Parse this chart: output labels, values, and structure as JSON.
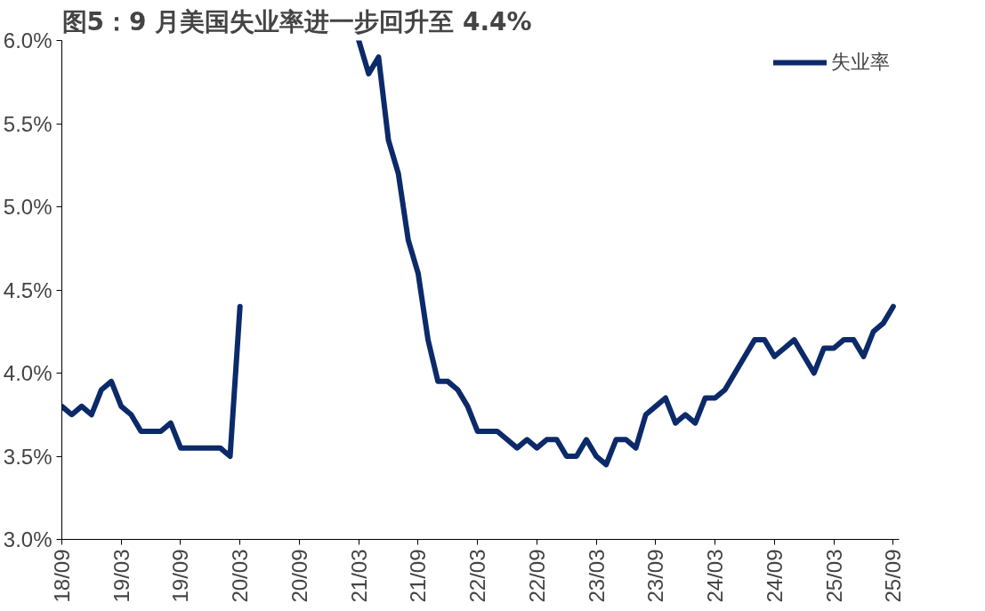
{
  "chart_data": {
    "type": "line",
    "title": "图5：9 月美国失业率进一步回升至 4.4%",
    "categories": [
      "18/09",
      null,
      null,
      null,
      null,
      null,
      "19/03",
      null,
      null,
      null,
      null,
      null,
      "19/09",
      null,
      null,
      null,
      null,
      null,
      "20/03",
      null,
      null,
      null,
      null,
      null,
      "20/09",
      null,
      null,
      null,
      null,
      null,
      "21/03",
      null,
      null,
      null,
      null,
      null,
      "21/09",
      null,
      null,
      null,
      null,
      null,
      "22/03",
      null,
      null,
      null,
      null,
      null,
      "22/09",
      null,
      null,
      null,
      null,
      null,
      "23/03",
      null,
      null,
      null,
      null,
      null,
      "23/09",
      null,
      null,
      null,
      null,
      null,
      "24/03",
      null,
      null,
      null,
      null,
      null,
      "24/09",
      null,
      null,
      null,
      null,
      null,
      "25/03",
      null,
      null,
      null,
      null,
      null,
      "25/09"
    ],
    "series": [
      {
        "name": "失业率",
        "color": "#0c2a6a",
        "values": [
          3.8,
          3.75,
          3.8,
          3.75,
          3.9,
          3.95,
          3.8,
          3.75,
          3.65,
          3.65,
          3.65,
          3.7,
          3.55,
          3.55,
          3.55,
          3.55,
          3.55,
          3.5,
          4.4,
          null,
          null,
          null,
          null,
          null,
          null,
          null,
          null,
          null,
          null,
          null,
          6.0,
          5.8,
          5.9,
          5.4,
          5.2,
          4.8,
          4.6,
          4.2,
          3.95,
          3.95,
          3.9,
          3.8,
          3.65,
          3.65,
          3.65,
          3.6,
          3.55,
          3.6,
          3.55,
          3.6,
          3.6,
          3.5,
          3.5,
          3.6,
          3.5,
          3.45,
          3.6,
          3.6,
          3.55,
          3.75,
          3.8,
          3.85,
          3.7,
          3.75,
          3.7,
          3.85,
          3.85,
          3.9,
          4.0,
          4.1,
          4.2,
          4.2,
          4.1,
          4.15,
          4.2,
          4.1,
          4.0,
          4.15,
          4.15,
          4.2,
          4.2,
          4.1,
          4.25,
          4.3,
          4.4
        ]
      }
    ],
    "ylim": [
      3.0,
      6.0
    ],
    "yticks": [
      {
        "value": 3.0,
        "label": "3.0%"
      },
      {
        "value": 3.5,
        "label": "3.5%"
      },
      {
        "value": 4.0,
        "label": "4.0%"
      },
      {
        "value": 4.5,
        "label": "4.5%"
      },
      {
        "value": 5.0,
        "label": "5.0%"
      },
      {
        "value": 5.5,
        "label": "5.5%"
      },
      {
        "value": 6.0,
        "label": "6.0%"
      }
    ],
    "grid": false,
    "legend": "top right",
    "line_style": "solid",
    "marker": "none"
  }
}
